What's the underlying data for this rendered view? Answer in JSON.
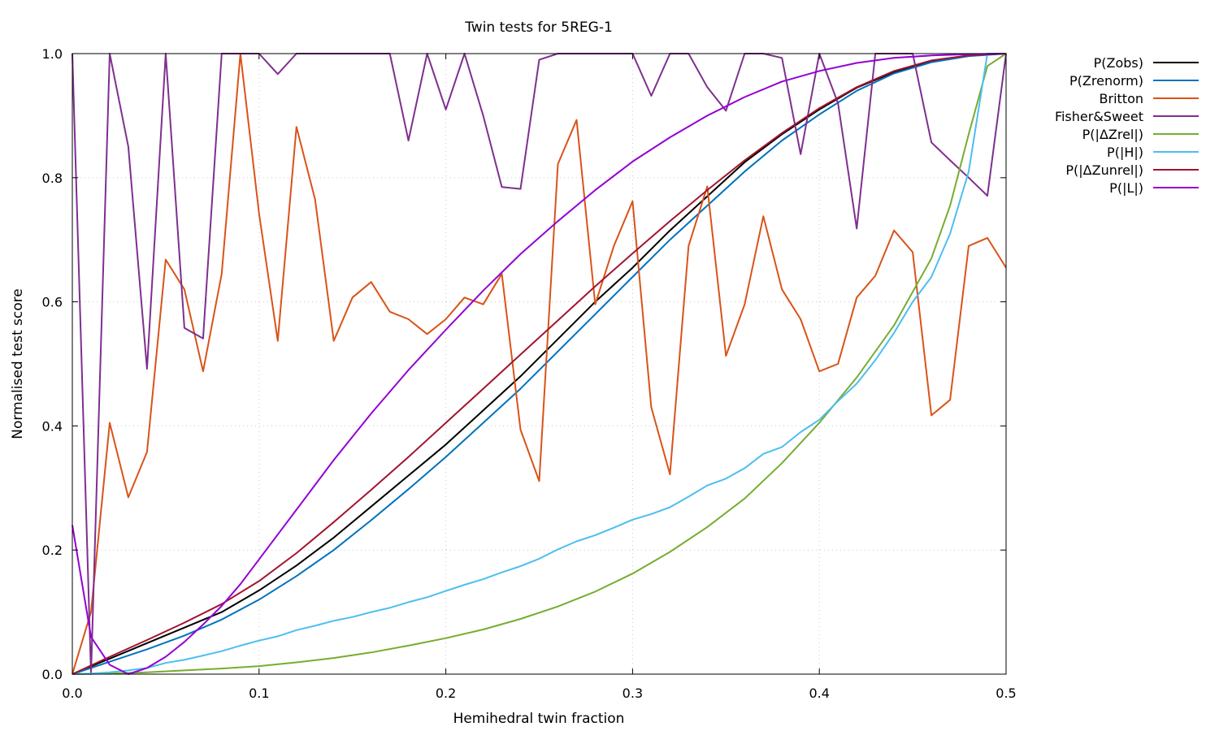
{
  "chart_data": {
    "type": "line",
    "title": "Twin tests for 5REG-1",
    "xlabel": "Hemihedral twin fraction",
    "ylabel": "Normalised test score",
    "xlim": [
      0,
      0.5
    ],
    "ylim": [
      0,
      1
    ],
    "xticks": [
      "0.0",
      "0.1",
      "0.2",
      "0.3",
      "0.4",
      "0.5"
    ],
    "yticks": [
      "0.0",
      "0.2",
      "0.4",
      "0.6",
      "0.8",
      "1.0"
    ],
    "grid": true,
    "legend_position": "outside-right-top",
    "series": [
      {
        "name": "P(Zobs)",
        "color": "#000000",
        "x": [
          0,
          0.02,
          0.04,
          0.06,
          0.08,
          0.1,
          0.12,
          0.14,
          0.16,
          0.18,
          0.2,
          0.22,
          0.24,
          0.26,
          0.28,
          0.3,
          0.32,
          0.34,
          0.36,
          0.38,
          0.4,
          0.42,
          0.44,
          0.46,
          0.48,
          0.5
        ],
        "y": [
          0,
          0.025,
          0.05,
          0.075,
          0.1,
          0.135,
          0.175,
          0.22,
          0.27,
          0.32,
          0.37,
          0.425,
          0.48,
          0.54,
          0.6,
          0.655,
          0.715,
          0.77,
          0.825,
          0.87,
          0.91,
          0.945,
          0.97,
          0.988,
          0.997,
          1.0
        ]
      },
      {
        "name": "P(Zrenorm)",
        "color": "#0072bd",
        "x": [
          0,
          0.02,
          0.04,
          0.06,
          0.08,
          0.1,
          0.12,
          0.14,
          0.16,
          0.18,
          0.2,
          0.22,
          0.24,
          0.26,
          0.28,
          0.3,
          0.32,
          0.34,
          0.36,
          0.38,
          0.4,
          0.42,
          0.44,
          0.46,
          0.48,
          0.5
        ],
        "y": [
          0,
          0.02,
          0.04,
          0.062,
          0.088,
          0.12,
          0.158,
          0.2,
          0.248,
          0.298,
          0.35,
          0.405,
          0.46,
          0.52,
          0.58,
          0.64,
          0.7,
          0.755,
          0.81,
          0.86,
          0.902,
          0.94,
          0.968,
          0.986,
          0.996,
          1.0
        ]
      },
      {
        "name": "Britton",
        "color": "#d95319",
        "x": [
          0,
          0.01,
          0.02,
          0.03,
          0.04,
          0.05,
          0.06,
          0.07,
          0.08,
          0.09,
          0.1,
          0.11,
          0.12,
          0.13,
          0.14,
          0.15,
          0.16,
          0.17,
          0.18,
          0.19,
          0.2,
          0.21,
          0.22,
          0.23,
          0.24,
          0.25,
          0.26,
          0.27,
          0.28,
          0.29,
          0.3,
          0.31,
          0.32,
          0.33,
          0.34,
          0.35,
          0.36,
          0.37,
          0.38,
          0.39,
          0.4,
          0.41,
          0.42,
          0.43,
          0.44,
          0.45,
          0.46,
          0.47,
          0.48,
          0.49,
          0.5
        ],
        "y": [
          0,
          0.1,
          0.405,
          0.285,
          0.358,
          0.668,
          0.62,
          0.488,
          0.645,
          1.0,
          0.742,
          0.537,
          0.882,
          0.765,
          0.537,
          0.607,
          0.632,
          0.584,
          0.572,
          0.548,
          0.572,
          0.607,
          0.596,
          0.645,
          0.394,
          0.311,
          0.822,
          0.893,
          0.596,
          0.69,
          0.762,
          0.43,
          0.322,
          0.69,
          0.786,
          0.513,
          0.596,
          0.738,
          0.62,
          0.572,
          0.488,
          0.5,
          0.607,
          0.642,
          0.715,
          0.68,
          0.417,
          0.442,
          0.69,
          0.703,
          0.655
        ]
      },
      {
        "name": "Fisher&Sweet",
        "color": "#7e2f8e",
        "x": [
          0,
          0.01,
          0.02,
          0.03,
          0.04,
          0.05,
          0.06,
          0.07,
          0.08,
          0.09,
          0.1,
          0.11,
          0.12,
          0.13,
          0.14,
          0.15,
          0.16,
          0.17,
          0.18,
          0.19,
          0.2,
          0.21,
          0.22,
          0.23,
          0.24,
          0.25,
          0.26,
          0.27,
          0.28,
          0.29,
          0.3,
          0.31,
          0.32,
          0.33,
          0.34,
          0.35,
          0.36,
          0.37,
          0.38,
          0.39,
          0.4,
          0.41,
          0.42,
          0.43,
          0.44,
          0.45,
          0.46,
          0.47,
          0.48,
          0.49,
          0.5
        ],
        "y": [
          1.0,
          0.0,
          1.0,
          0.85,
          0.492,
          1.0,
          0.558,
          0.541,
          1.0,
          1.0,
          1.0,
          0.967,
          1.0,
          1.0,
          1.0,
          1.0,
          1.0,
          1.0,
          0.86,
          1.0,
          0.91,
          1.0,
          0.9,
          0.785,
          0.782,
          0.99,
          1.0,
          1.0,
          1.0,
          1.0,
          1.0,
          0.932,
          1.0,
          1.0,
          0.946,
          0.908,
          1.0,
          1.0,
          0.993,
          0.838,
          1.0,
          0.92,
          0.718,
          1.0,
          1.0,
          1.0,
          0.857,
          0.828,
          0.8,
          0.771,
          1.0
        ]
      },
      {
        "name": "P(|ΔZrel|)",
        "color": "#77ac30",
        "x": [
          0,
          0.02,
          0.04,
          0.06,
          0.08,
          0.1,
          0.12,
          0.14,
          0.16,
          0.18,
          0.2,
          0.22,
          0.24,
          0.26,
          0.28,
          0.3,
          0.32,
          0.34,
          0.36,
          0.38,
          0.4,
          0.42,
          0.44,
          0.46,
          0.47,
          0.48,
          0.49,
          0.5
        ],
        "y": [
          0,
          0.001,
          0.003,
          0.006,
          0.009,
          0.013,
          0.019,
          0.026,
          0.035,
          0.046,
          0.058,
          0.072,
          0.089,
          0.109,
          0.133,
          0.162,
          0.197,
          0.237,
          0.283,
          0.34,
          0.405,
          0.478,
          0.562,
          0.67,
          0.755,
          0.87,
          0.98,
          1.0
        ]
      },
      {
        "name": "P(|H|)",
        "color": "#4dbeee",
        "x": [
          0,
          0.01,
          0.02,
          0.03,
          0.04,
          0.05,
          0.06,
          0.07,
          0.08,
          0.09,
          0.1,
          0.11,
          0.12,
          0.13,
          0.14,
          0.15,
          0.16,
          0.17,
          0.18,
          0.19,
          0.2,
          0.21,
          0.22,
          0.23,
          0.24,
          0.25,
          0.26,
          0.27,
          0.28,
          0.29,
          0.3,
          0.31,
          0.32,
          0.33,
          0.34,
          0.35,
          0.36,
          0.37,
          0.38,
          0.39,
          0.4,
          0.41,
          0.42,
          0.43,
          0.44,
          0.45,
          0.46,
          0.47,
          0.48,
          0.49,
          0.5
        ],
        "y": [
          0,
          0.001,
          0.003,
          0.006,
          0.01,
          0.018,
          0.023,
          0.03,
          0.037,
          0.046,
          0.054,
          0.061,
          0.071,
          0.078,
          0.086,
          0.092,
          0.1,
          0.107,
          0.116,
          0.124,
          0.134,
          0.144,
          0.153,
          0.164,
          0.174,
          0.186,
          0.201,
          0.214,
          0.224,
          0.236,
          0.249,
          0.258,
          0.269,
          0.286,
          0.304,
          0.315,
          0.332,
          0.355,
          0.366,
          0.39,
          0.41,
          0.44,
          0.468,
          0.506,
          0.55,
          0.6,
          0.64,
          0.71,
          0.81,
          1.0,
          1.0
        ]
      },
      {
        "name": "P(|ΔZunrel|)",
        "color": "#a2142f",
        "x": [
          0,
          0.02,
          0.04,
          0.06,
          0.08,
          0.1,
          0.12,
          0.14,
          0.16,
          0.18,
          0.2,
          0.22,
          0.24,
          0.26,
          0.28,
          0.3,
          0.32,
          0.34,
          0.36,
          0.38,
          0.4,
          0.42,
          0.44,
          0.46,
          0.48,
          0.5
        ],
        "y": [
          0,
          0.028,
          0.055,
          0.083,
          0.113,
          0.15,
          0.195,
          0.245,
          0.297,
          0.35,
          0.405,
          0.46,
          0.515,
          0.57,
          0.625,
          0.678,
          0.73,
          0.78,
          0.828,
          0.872,
          0.912,
          0.946,
          0.972,
          0.989,
          0.997,
          1.0
        ]
      },
      {
        "name": "P(|L|)",
        "color": "#9400d3",
        "x": [
          0,
          0.01,
          0.02,
          0.03,
          0.04,
          0.05,
          0.06,
          0.07,
          0.08,
          0.09,
          0.1,
          0.12,
          0.14,
          0.16,
          0.18,
          0.2,
          0.22,
          0.24,
          0.26,
          0.28,
          0.3,
          0.32,
          0.34,
          0.36,
          0.38,
          0.4,
          0.42,
          0.44,
          0.46,
          0.48,
          0.5
        ],
        "y": [
          0.24,
          0.06,
          0.015,
          0.0,
          0.01,
          0.028,
          0.052,
          0.08,
          0.11,
          0.145,
          0.185,
          0.265,
          0.345,
          0.42,
          0.49,
          0.555,
          0.618,
          0.677,
          0.73,
          0.78,
          0.826,
          0.865,
          0.9,
          0.93,
          0.955,
          0.972,
          0.985,
          0.993,
          0.997,
          0.999,
          1.0
        ]
      }
    ]
  }
}
